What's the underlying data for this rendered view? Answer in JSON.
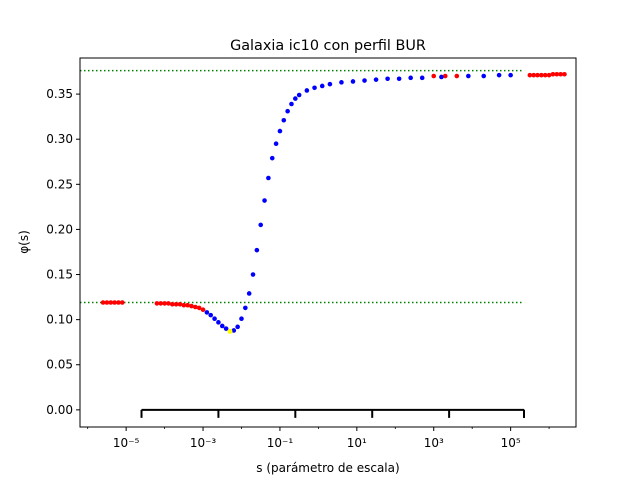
{
  "chart_data": {
    "type": "scatter",
    "title": "Galaxia ic10 con perfil BUR",
    "xlabel": "s (parámetro de escala)",
    "ylabel": "φ(s)",
    "xscale": "log",
    "xlim_log10": [
      -6.2,
      6.7
    ],
    "ylim": [
      -0.019,
      0.39
    ],
    "y_ticks": [
      "0.00",
      "0.05",
      "0.10",
      "0.15",
      "0.20",
      "0.25",
      "0.30",
      "0.35"
    ],
    "x_ticks": [
      {
        "exp": -5,
        "label": "10⁻⁵"
      },
      {
        "exp": -3,
        "label": "10⁻³"
      },
      {
        "exp": -1,
        "label": "10⁻¹"
      },
      {
        "exp": 1,
        "label": "10¹"
      },
      {
        "exp": 3,
        "label": "10³"
      },
      {
        "exp": 5,
        "label": "10⁵"
      }
    ],
    "hlines": [
      {
        "y": 0.376,
        "color": "#008000",
        "style": "dotted",
        "x_log10": [
          -6.2,
          5.3
        ]
      },
      {
        "y": 0.119,
        "color": "#008000",
        "style": "dotted",
        "x_log10": [
          -6.2,
          5.3
        ]
      }
    ],
    "scale_bar": {
      "y": 0.0,
      "x_log10": [
        -4.6,
        -2.6,
        -0.6,
        1.4,
        3.4,
        5.4,
        7.4,
        9.4
      ],
      "color": "#000000"
    },
    "minimum_marker": {
      "x_log10": -2.3,
      "y": 0.087,
      "color": "#ffff00"
    },
    "colors": {
      "red": "#ff0000",
      "blue": "#0000ff",
      "green": "#008000"
    },
    "series": [
      {
        "color": "#ff0000",
        "x_log10": [
          -5.6,
          -5.5,
          -5.4,
          -5.3,
          -5.2,
          -5.1,
          -4.2,
          -4.1,
          -4.0,
          -3.9,
          -3.8,
          -3.7,
          -3.6,
          -3.5,
          -3.4,
          -3.3,
          -3.2,
          -3.1,
          -3.0,
          3.0,
          3.3,
          3.6,
          5.5,
          5.6,
          5.7,
          5.8,
          5.9,
          6.0,
          6.1,
          6.2,
          6.3,
          6.4
        ],
        "y": [
          0.119,
          0.119,
          0.119,
          0.119,
          0.119,
          0.119,
          0.118,
          0.118,
          0.118,
          0.118,
          0.117,
          0.117,
          0.117,
          0.116,
          0.116,
          0.115,
          0.114,
          0.113,
          0.111,
          0.37,
          0.37,
          0.37,
          0.371,
          0.371,
          0.371,
          0.371,
          0.371,
          0.371,
          0.372,
          0.372,
          0.372,
          0.372
        ]
      },
      {
        "color": "#0000ff",
        "x_log10": [
          -2.9,
          -2.8,
          -2.7,
          -2.6,
          -2.5,
          -2.4,
          -2.2,
          -2.1,
          -2.0,
          -1.9,
          -1.8,
          -1.7,
          -1.6,
          -1.5,
          -1.4,
          -1.3,
          -1.2,
          -1.1,
          -1.0,
          -0.9,
          -0.8,
          -0.7,
          -0.6,
          -0.5,
          -0.3,
          -0.1,
          0.1,
          0.3,
          0.6,
          0.9,
          1.2,
          1.5,
          1.8,
          2.1,
          2.4,
          2.7,
          3.2,
          3.9,
          4.3,
          4.7,
          5.0
        ],
        "y": [
          0.108,
          0.105,
          0.101,
          0.097,
          0.093,
          0.09,
          0.088,
          0.092,
          0.101,
          0.113,
          0.129,
          0.15,
          0.177,
          0.205,
          0.232,
          0.257,
          0.279,
          0.295,
          0.309,
          0.321,
          0.331,
          0.339,
          0.345,
          0.349,
          0.354,
          0.357,
          0.359,
          0.361,
          0.363,
          0.364,
          0.365,
          0.366,
          0.367,
          0.367,
          0.368,
          0.368,
          0.369,
          0.37,
          0.37,
          0.371,
          0.371
        ]
      }
    ]
  }
}
